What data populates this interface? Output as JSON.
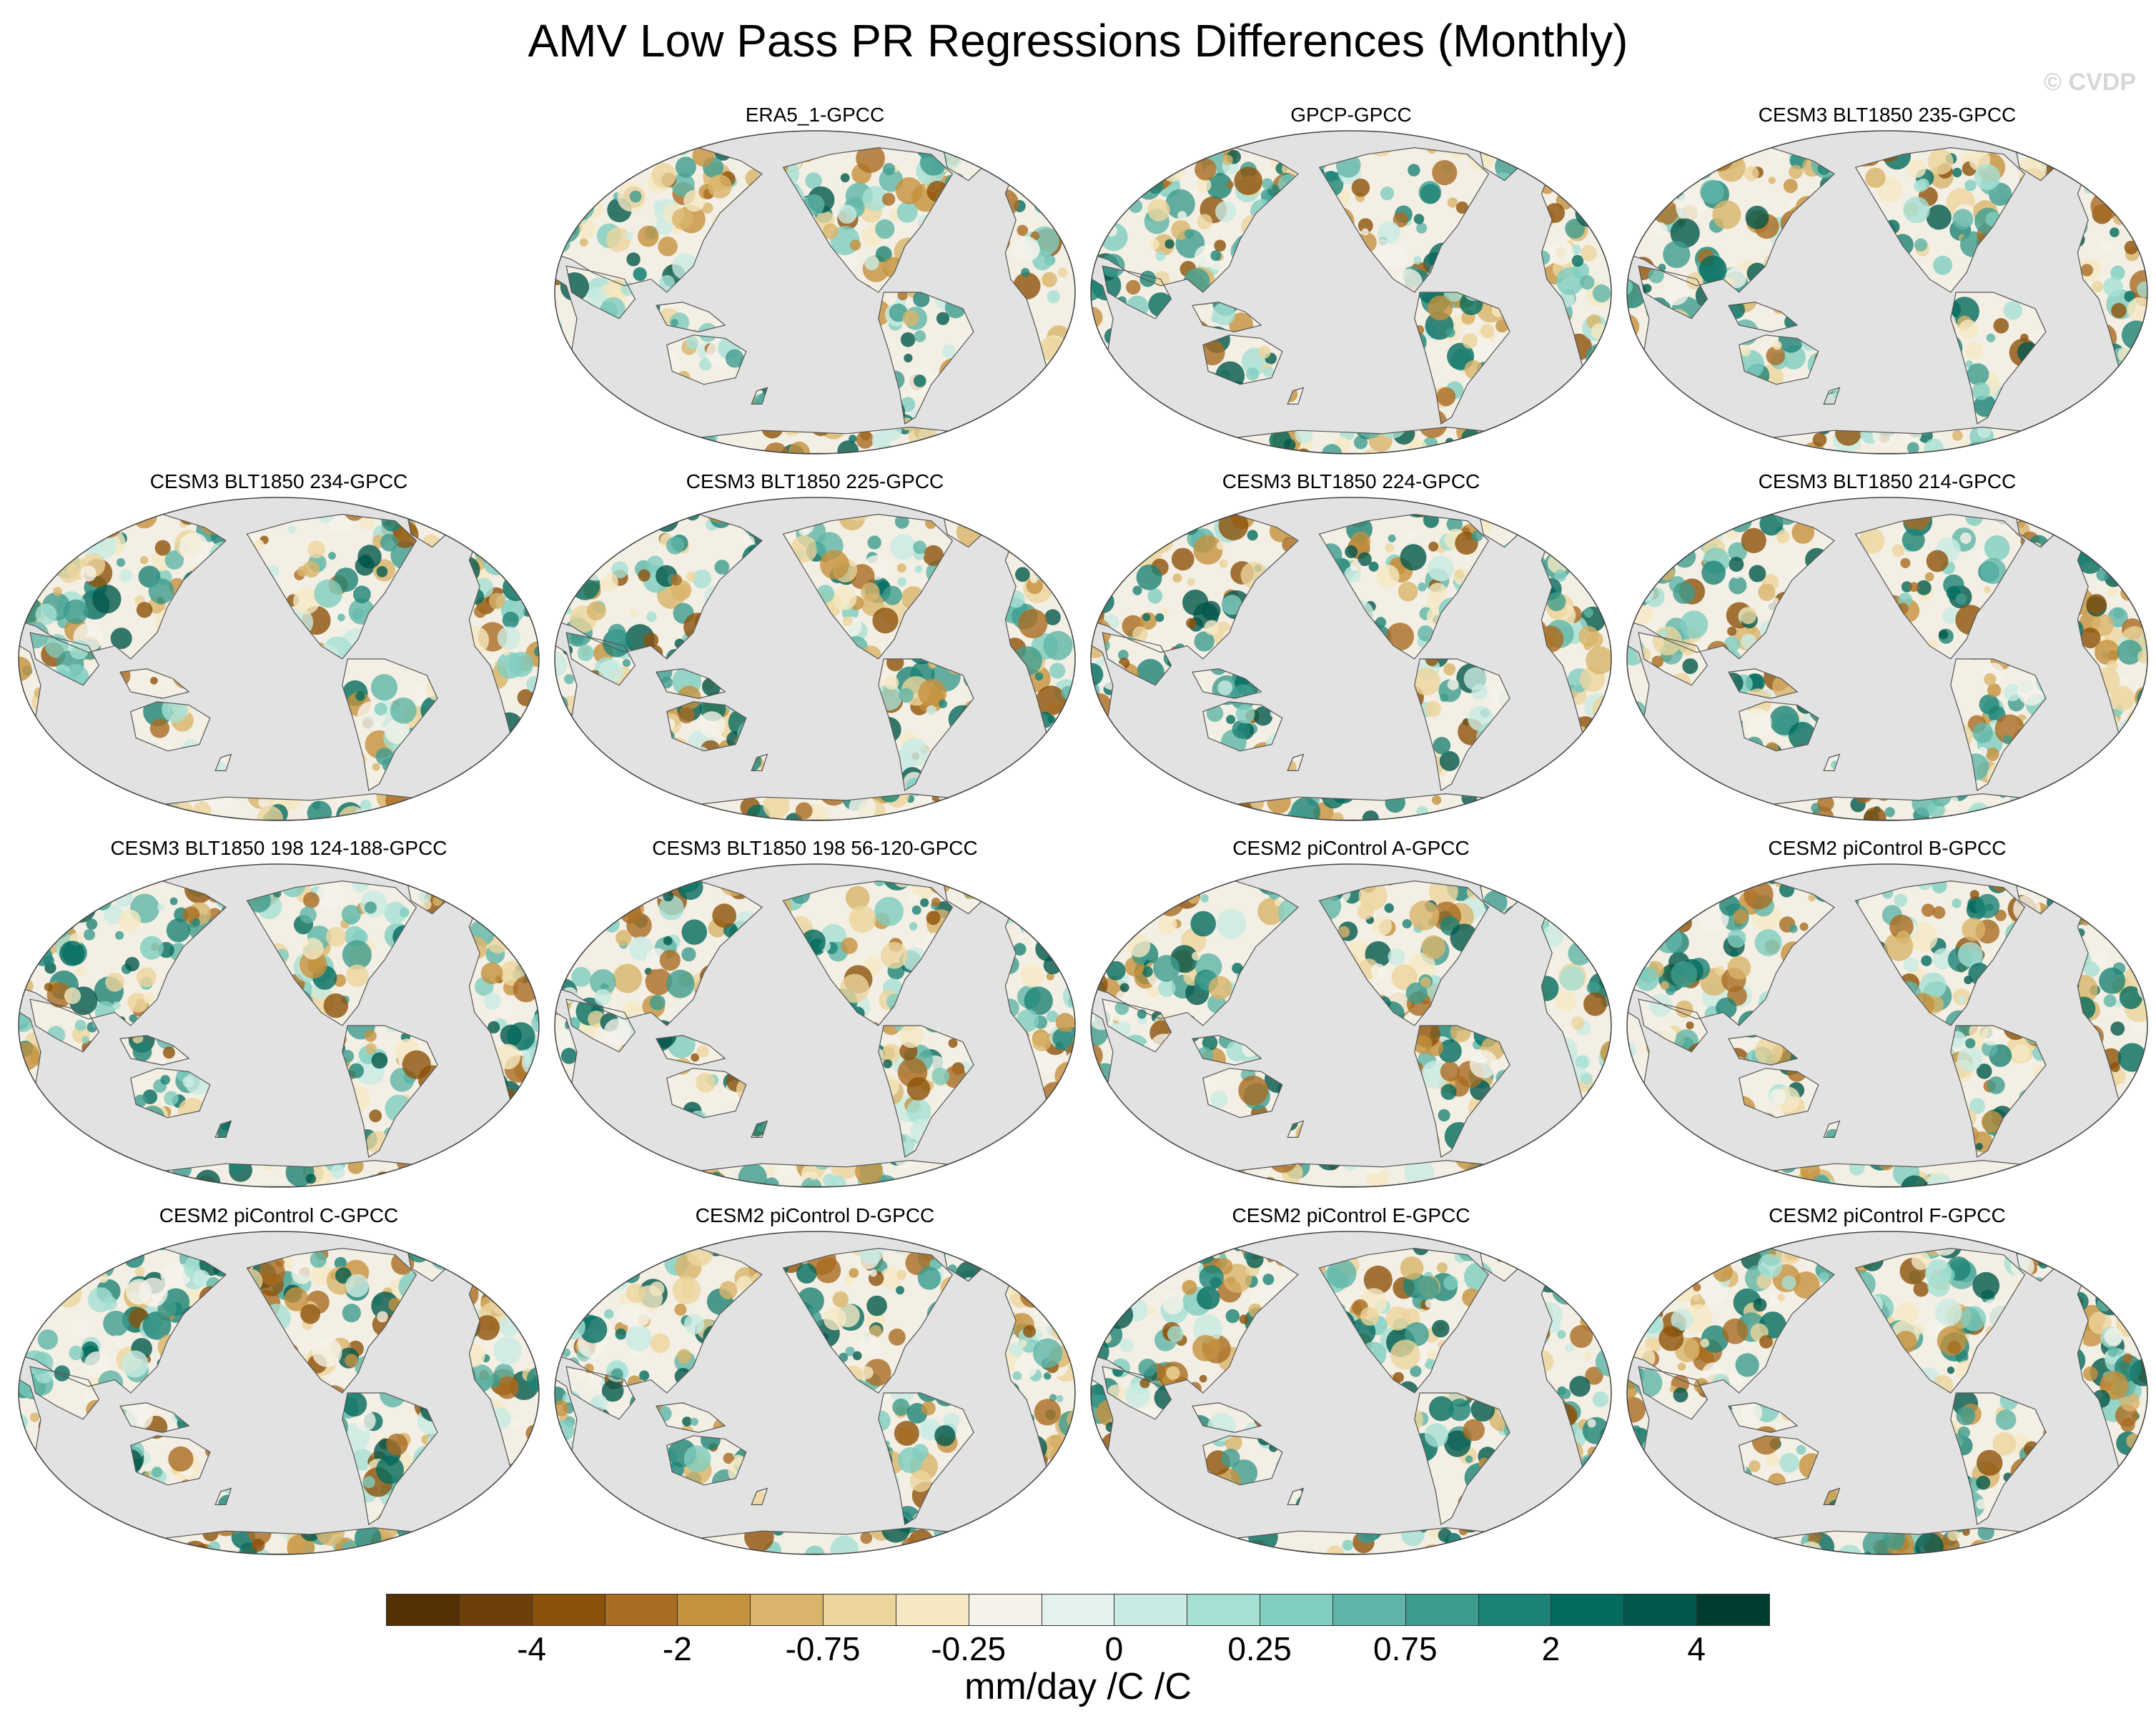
{
  "title": "AMV Low Pass PR Regressions Differences (Monthly)",
  "watermark": "© CVDP",
  "panels": [
    {
      "label": "ERA5_1-GPCC"
    },
    {
      "label": "GPCP-GPCC"
    },
    {
      "label": "CESM3 BLT1850 235-GPCC"
    },
    {
      "label": "CESM3 BLT1850 234-GPCC"
    },
    {
      "label": "CESM3 BLT1850 225-GPCC"
    },
    {
      "label": "CESM3 BLT1850 224-GPCC"
    },
    {
      "label": "CESM3 BLT1850 214-GPCC"
    },
    {
      "label": "CESM3 BLT1850 198 124-188-GPCC"
    },
    {
      "label": "CESM3 BLT1850 198 56-120-GPCC"
    },
    {
      "label": "CESM2 piControl A-GPCC"
    },
    {
      "label": "CESM2 piControl B-GPCC"
    },
    {
      "label": "CESM2 piControl C-GPCC"
    },
    {
      "label": "CESM2 piControl D-GPCC"
    },
    {
      "label": "CESM2 piControl E-GPCC"
    },
    {
      "label": "CESM2 piControl F-GPCC"
    }
  ],
  "colorbar": {
    "colors": [
      "#543005",
      "#6e4009",
      "#8c510a",
      "#a96c22",
      "#c4913d",
      "#d9b46a",
      "#ecd59c",
      "#f5e8c3",
      "#f5f2ea",
      "#e5f1ef",
      "#c9ebe4",
      "#a6e0d5",
      "#80cdc1",
      "#5fb5a8",
      "#3e9c8f",
      "#1d8376",
      "#046b5e",
      "#02574b",
      "#003c30"
    ],
    "ticks": [
      {
        "text": "-4",
        "index": 2
      },
      {
        "text": "-2",
        "index": 4
      },
      {
        "text": "-0.75",
        "index": 6
      },
      {
        "text": "-0.25",
        "index": 8
      },
      {
        "text": "0",
        "index": 10
      },
      {
        "text": "0.25",
        "index": 12
      },
      {
        "text": "0.75",
        "index": 14
      },
      {
        "text": "2",
        "index": 16
      },
      {
        "text": "4",
        "index": 18
      }
    ],
    "units": "mm/day /C /C"
  },
  "map_colors": {
    "ocean": "#e2e2e2",
    "coast": "#555555",
    "land_base": "#f3efe4"
  }
}
